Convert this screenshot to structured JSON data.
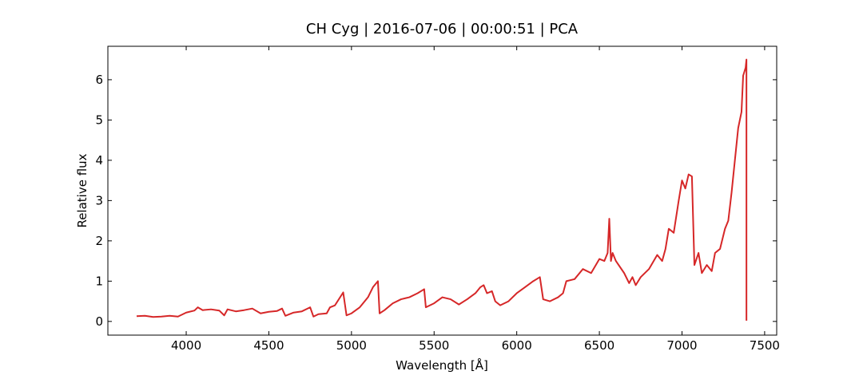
{
  "chart_data": {
    "type": "line",
    "title": "CH Cyg | 2016-07-06 | 00:00:51 | PCA",
    "x_label": "Wavelength [Å]",
    "y_label": "Relative flux",
    "xlim": [
      3526,
      7573
    ],
    "ylim": [
      -0.34,
      6.83
    ],
    "xticks": [
      4000,
      4500,
      5000,
      5500,
      6000,
      6500,
      7000,
      7500
    ],
    "yticks": [
      0,
      1,
      2,
      3,
      4,
      5,
      6
    ],
    "grid": false,
    "series": [
      {
        "color": "#d62728",
        "x": [
          3700,
          3750,
          3800,
          3850,
          3900,
          3950,
          4000,
          4050,
          4070,
          4100,
          4150,
          4200,
          4230,
          4250,
          4300,
          4350,
          4400,
          4450,
          4500,
          4550,
          4580,
          4600,
          4650,
          4700,
          4750,
          4770,
          4800,
          4850,
          4870,
          4900,
          4950,
          4970,
          5000,
          5050,
          5100,
          5130,
          5160,
          5170,
          5200,
          5250,
          5300,
          5350,
          5400,
          5440,
          5450,
          5500,
          5550,
          5600,
          5650,
          5700,
          5750,
          5780,
          5800,
          5820,
          5850,
          5870,
          5900,
          5950,
          6000,
          6050,
          6100,
          6140,
          6160,
          6200,
          6250,
          6280,
          6300,
          6350,
          6400,
          6450,
          6500,
          6530,
          6550,
          6560,
          6570,
          6580,
          6600,
          6650,
          6680,
          6700,
          6720,
          6750,
          6800,
          6850,
          6880,
          6900,
          6920,
          6950,
          6980,
          7000,
          7020,
          7040,
          7060,
          7075,
          7100,
          7120,
          7150,
          7180,
          7200,
          7230,
          7260,
          7280,
          7300,
          7320,
          7340,
          7360,
          7370,
          7385,
          7390,
          7390
        ],
        "values": [
          0.13,
          0.14,
          0.11,
          0.12,
          0.14,
          0.12,
          0.22,
          0.27,
          0.35,
          0.28,
          0.3,
          0.27,
          0.15,
          0.3,
          0.25,
          0.28,
          0.32,
          0.2,
          0.24,
          0.26,
          0.32,
          0.14,
          0.22,
          0.25,
          0.35,
          0.12,
          0.18,
          0.2,
          0.35,
          0.4,
          0.72,
          0.15,
          0.2,
          0.35,
          0.6,
          0.85,
          1.0,
          0.2,
          0.28,
          0.45,
          0.55,
          0.6,
          0.7,
          0.8,
          0.35,
          0.45,
          0.6,
          0.55,
          0.42,
          0.55,
          0.7,
          0.85,
          0.9,
          0.7,
          0.75,
          0.5,
          0.4,
          0.5,
          0.7,
          0.85,
          1.0,
          1.1,
          0.55,
          0.5,
          0.6,
          0.7,
          1.0,
          1.05,
          1.3,
          1.2,
          1.55,
          1.5,
          1.7,
          2.55,
          1.5,
          1.7,
          1.5,
          1.2,
          0.95,
          1.1,
          0.9,
          1.1,
          1.3,
          1.65,
          1.5,
          1.8,
          2.3,
          2.2,
          3.0,
          3.5,
          3.3,
          3.65,
          3.6,
          1.4,
          1.7,
          1.2,
          1.4,
          1.25,
          1.7,
          1.8,
          2.3,
          2.5,
          3.2,
          4.0,
          4.8,
          5.2,
          6.1,
          6.3,
          6.5,
          0.02
        ]
      }
    ]
  }
}
